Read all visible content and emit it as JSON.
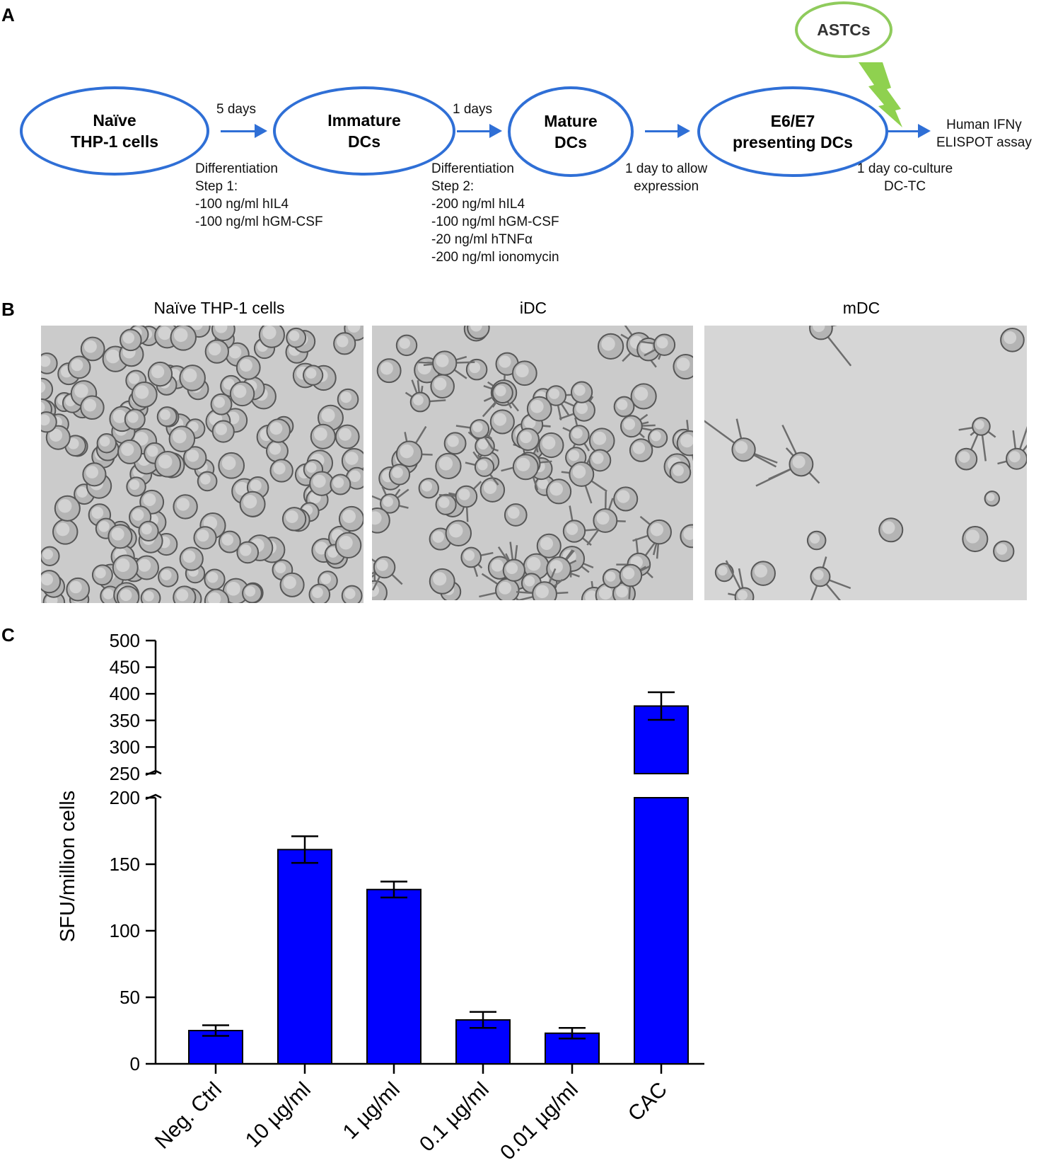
{
  "panel_a": {
    "letter": "A",
    "nodes": [
      {
        "line1": "Naïve",
        "line2": "THP-1 cells"
      },
      {
        "line1": "Immature",
        "line2": "DCs"
      },
      {
        "line1": "Mature",
        "line2": "DCs"
      },
      {
        "line1": "E6/E7",
        "line2": "presenting DCs"
      }
    ],
    "astcs": "ASTCs",
    "arrow_labels": [
      "5 days",
      "1 days"
    ],
    "step1": [
      "Differentiation",
      "Step 1:",
      "-100 ng/ml hIL4",
      "-100 ng/ml hGM-CSF"
    ],
    "step2": [
      "Differentiation",
      "Step 2:",
      "-200 ng/ml hIL4",
      "-100 ng/ml hGM-CSF",
      "-20 ng/ml hTNFα",
      "-200 ng/ml ionomycin"
    ],
    "expression_note": [
      "1 day to allow",
      "expression"
    ],
    "coculture_note": [
      "1 day  co-culture",
      "DC-TC"
    ],
    "endpoint": [
      "Human IFNγ",
      "ELISPOT assay"
    ],
    "colors": {
      "node_border": "#2f6fd6",
      "astcs_border": "#8fcb5c",
      "lightning": "#8fd14f"
    }
  },
  "panel_b": {
    "letter": "B",
    "images": [
      {
        "title": "Naïve THP-1 cells"
      },
      {
        "title": "iDC"
      },
      {
        "title": "mDC"
      }
    ]
  },
  "panel_c": {
    "letter": "C"
  },
  "chart_data": {
    "type": "bar",
    "categories": [
      "Neg. Ctrl",
      "10 µg/ml",
      "1 µg/ml",
      "0.1 µg/ml",
      "0.01 µg/ml",
      "CAC"
    ],
    "values": [
      25,
      161,
      131,
      33,
      23,
      377
    ],
    "error": [
      4,
      10,
      6,
      6,
      4,
      26
    ],
    "ylabel": "SFU/million cells",
    "xlabel": "",
    "ylim": [
      0,
      500
    ],
    "axis_break": [
      200,
      250
    ],
    "yticks_lower": [
      0,
      50,
      100,
      150,
      200
    ],
    "yticks_upper": [
      250,
      300,
      350,
      400,
      450,
      500
    ],
    "bar_color": "#0000ff",
    "grid": false,
    "legend": "none"
  }
}
